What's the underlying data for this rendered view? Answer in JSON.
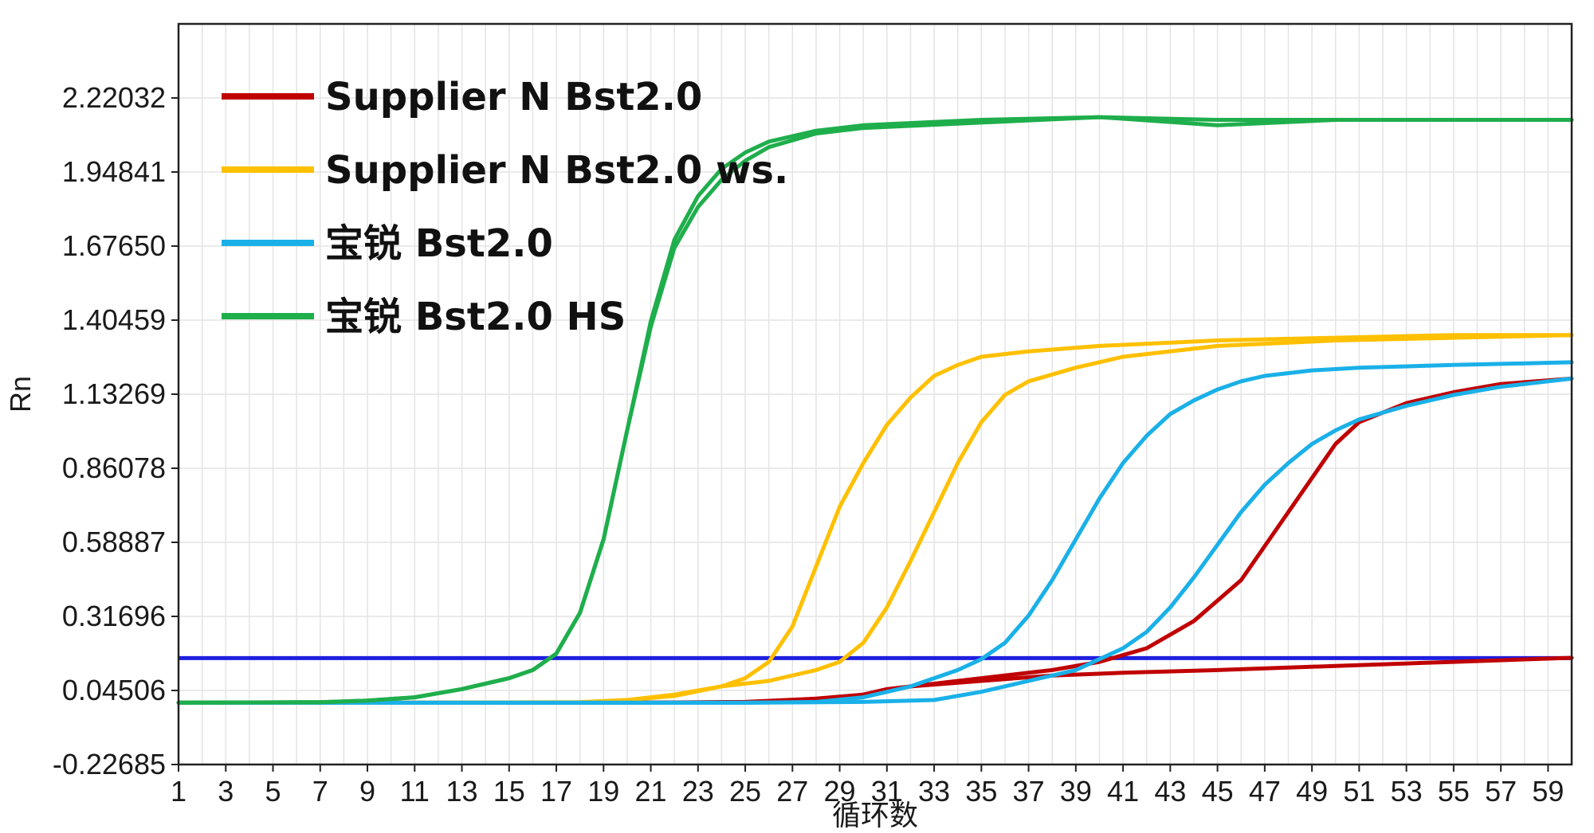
{
  "chart_data": {
    "type": "line",
    "xlabel": "循环数",
    "ylabel": "Rn",
    "xlim": [
      1,
      60
    ],
    "ylim": [
      -0.22685,
      2.49223
    ],
    "x_ticks": [
      "1",
      "3",
      "5",
      "7",
      "9",
      "11",
      "13",
      "15",
      "17",
      "19",
      "21",
      "23",
      "25",
      "27",
      "29",
      "31",
      "33",
      "35",
      "37",
      "39",
      "41",
      "43",
      "45",
      "47",
      "49",
      "51",
      "53",
      "55",
      "57",
      "59"
    ],
    "y_ticks": [
      "2.22032",
      "1.94841",
      "1.67650",
      "1.40459",
      "1.13269",
      "0.86078",
      "0.58887",
      "0.31696",
      "0.04506",
      "-0.22685"
    ],
    "grid": true,
    "legend_position": "top-left",
    "threshold": {
      "value": 0.164,
      "color": "#1f1fe0"
    },
    "legend": [
      {
        "label": "Supplier N Bst2.0",
        "color": "#c00000"
      },
      {
        "label": "Supplier N Bst2.0 ws.",
        "color": "#ffc000"
      },
      {
        "label": "宝锐 Bst2.0",
        "color": "#1ab0e8"
      },
      {
        "label": "宝锐 Bst2.0 HS",
        "color": "#1fae4c"
      }
    ],
    "series": [
      {
        "name": "Supplier N Bst2.0",
        "color": "#c00000",
        "x": [
          1,
          10,
          20,
          25,
          28,
          30,
          31,
          33,
          35,
          38,
          40,
          42,
          44,
          46,
          48,
          50,
          51,
          53,
          55,
          57,
          60
        ],
        "y": [
          0.0,
          0.0,
          0.0,
          0.003,
          0.015,
          0.03,
          0.05,
          0.07,
          0.09,
          0.12,
          0.15,
          0.2,
          0.3,
          0.45,
          0.7,
          0.95,
          1.03,
          1.1,
          1.14,
          1.17,
          1.19
        ]
      },
      {
        "name": "Supplier N Bst2.0",
        "color": "#c00000",
        "x": [
          1,
          20,
          26,
          28,
          30,
          32,
          35,
          38,
          41,
          45,
          50,
          55,
          60
        ],
        "y": [
          0.0,
          0.0,
          0.003,
          0.01,
          0.03,
          0.06,
          0.08,
          0.1,
          0.11,
          0.12,
          0.135,
          0.15,
          0.165
        ]
      },
      {
        "name": "Supplier N Bst2.0 ws.",
        "color": "#ffc000",
        "x": [
          1,
          10,
          18,
          20,
          22,
          24,
          25,
          26,
          27,
          28,
          29,
          30,
          31,
          32,
          33,
          34,
          35,
          37,
          40,
          45,
          50,
          55,
          60
        ],
        "y": [
          0.0,
          0.0,
          0.002,
          0.01,
          0.025,
          0.06,
          0.09,
          0.15,
          0.28,
          0.5,
          0.72,
          0.88,
          1.02,
          1.12,
          1.2,
          1.24,
          1.27,
          1.29,
          1.31,
          1.33,
          1.34,
          1.35,
          1.35
        ]
      },
      {
        "name": "Supplier N Bst2.0 ws.",
        "color": "#ffc000",
        "x": [
          1,
          10,
          18,
          20,
          22,
          24,
          26,
          28,
          29,
          30,
          31,
          32,
          33,
          34,
          35,
          36,
          37,
          39,
          41,
          45,
          50,
          55,
          60
        ],
        "y": [
          0.0,
          0.0,
          0.002,
          0.01,
          0.03,
          0.06,
          0.08,
          0.12,
          0.15,
          0.22,
          0.35,
          0.52,
          0.7,
          0.88,
          1.03,
          1.13,
          1.18,
          1.23,
          1.27,
          1.31,
          1.33,
          1.34,
          1.35
        ]
      },
      {
        "name": "宝锐 Bst2.0",
        "color": "#1ab0e8",
        "x": [
          1,
          25,
          28,
          30,
          32,
          34,
          35,
          36,
          37,
          38,
          39,
          40,
          41,
          42,
          43,
          44,
          45,
          46,
          47,
          49,
          51,
          55,
          60
        ],
        "y": [
          0.0,
          0.0,
          0.003,
          0.02,
          0.06,
          0.12,
          0.16,
          0.22,
          0.32,
          0.45,
          0.6,
          0.75,
          0.88,
          0.98,
          1.06,
          1.11,
          1.15,
          1.18,
          1.2,
          1.22,
          1.23,
          1.24,
          1.25
        ]
      },
      {
        "name": "宝锐 Bst2.0",
        "color": "#1ab0e8",
        "x": [
          1,
          25,
          30,
          33,
          35,
          37,
          39,
          40,
          41,
          42,
          43,
          44,
          45,
          46,
          47,
          48,
          49,
          50,
          51,
          53,
          55,
          57,
          60
        ],
        "y": [
          0.0,
          0.0,
          0.003,
          0.01,
          0.04,
          0.08,
          0.12,
          0.16,
          0.2,
          0.26,
          0.35,
          0.46,
          0.58,
          0.7,
          0.8,
          0.88,
          0.95,
          1.0,
          1.04,
          1.09,
          1.13,
          1.16,
          1.19
        ]
      },
      {
        "name": "宝锐 Bst2.0 HS",
        "color": "#1fae4c",
        "x": [
          1,
          7,
          9,
          11,
          13,
          15,
          16,
          17,
          18,
          19,
          20,
          21,
          22,
          23,
          24,
          25,
          26,
          28,
          30,
          35,
          40,
          45,
          50,
          55,
          60
        ],
        "y": [
          0.0,
          0.002,
          0.008,
          0.02,
          0.05,
          0.09,
          0.12,
          0.18,
          0.33,
          0.6,
          1.0,
          1.4,
          1.7,
          1.86,
          1.96,
          2.02,
          2.06,
          2.1,
          2.12,
          2.14,
          2.15,
          2.14,
          2.14,
          2.14,
          2.14
        ]
      },
      {
        "name": "宝锐 Bst2.0 HS",
        "color": "#1fae4c",
        "x": [
          1,
          7,
          9,
          11,
          13,
          15,
          16,
          17,
          18,
          19,
          20,
          21,
          22,
          23,
          24,
          25,
          26,
          28,
          30,
          35,
          40,
          45,
          50,
          55,
          60
        ],
        "y": [
          0.0,
          0.002,
          0.008,
          0.02,
          0.05,
          0.09,
          0.12,
          0.18,
          0.33,
          0.6,
          1.0,
          1.38,
          1.67,
          1.82,
          1.92,
          1.99,
          2.04,
          2.09,
          2.11,
          2.13,
          2.15,
          2.12,
          2.14,
          2.14,
          2.14
        ]
      }
    ]
  }
}
